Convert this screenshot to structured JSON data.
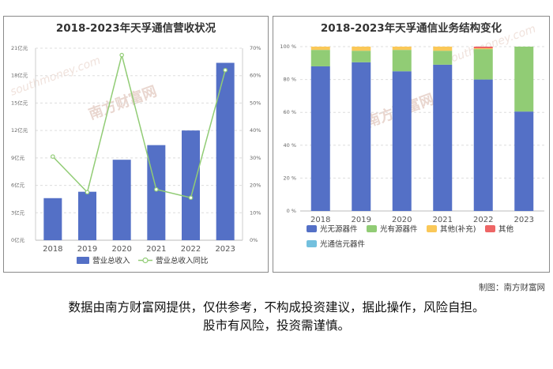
{
  "credit": "制图：南方财富网",
  "disclaimer": {
    "line1": "数据由南方财富网提供，仅供参考，不构成投资建议，据此操作，风险自担。",
    "line2": "股市有风险，投资需谨慎。"
  },
  "watermark": {
    "brand": "南方财富网",
    "site": "southmoney.com"
  },
  "colors": {
    "bar_revenue": "#5470c6",
    "line_yoy": "#91cc75",
    "seg_light_passive": "#5470c6",
    "seg_light_active": "#91cc75",
    "seg_other_supp": "#fac858",
    "seg_other": "#ee6666",
    "seg_optical_comm": "#73c0de"
  },
  "chart_data": [
    {
      "type": "bar",
      "title": "2018-2023年天孚通信营收状况",
      "categories": [
        "2018",
        "2019",
        "2020",
        "2021",
        "2022",
        "2023"
      ],
      "series": [
        {
          "name": "营业总收入",
          "type": "bar",
          "axis": "left",
          "values": [
            4.6,
            5.3,
            8.8,
            10.4,
            12.0,
            19.4
          ]
        },
        {
          "name": "营业总收入同比",
          "type": "line",
          "axis": "right",
          "values": [
            30.5,
            17.5,
            67.5,
            18.5,
            15.5,
            62.0
          ]
        }
      ],
      "y_left": {
        "ticks": [
          "0亿元",
          "3亿元",
          "6亿元",
          "9亿元",
          "12亿元",
          "15亿元",
          "18亿元",
          "21亿元"
        ],
        "ylim": [
          0,
          21
        ]
      },
      "y_right": {
        "ticks": [
          "0%",
          "10%",
          "20%",
          "30%",
          "40%",
          "50%",
          "60%",
          "70%"
        ],
        "ylim": [
          0,
          70
        ]
      },
      "grid": "horizontal-dashed",
      "legend_position": "bottom"
    },
    {
      "type": "bar",
      "stacked": true,
      "title": "2018-2023年天孚通信业务结构变化",
      "categories": [
        "2018",
        "2019",
        "2020",
        "2021",
        "2022",
        "2023"
      ],
      "series": [
        {
          "name": "光无源器件",
          "values": [
            88,
            90.5,
            85,
            89,
            80,
            60.5
          ]
        },
        {
          "name": "光有源器件",
          "values": [
            10,
            7,
            13,
            8.5,
            18.5,
            39.5
          ]
        },
        {
          "name": "其他(补充)",
          "values": [
            2,
            2.5,
            2,
            2.5,
            0.5,
            0
          ]
        },
        {
          "name": "其他",
          "values": [
            0,
            0,
            0,
            0,
            1,
            0
          ]
        },
        {
          "name": "光通信元器件",
          "values": [
            0,
            0,
            0,
            0,
            0,
            0
          ]
        }
      ],
      "y": {
        "ticks": [
          "0 %",
          "20 %",
          "40 %",
          "60 %",
          "80 %",
          "100 %"
        ],
        "ylim": [
          0,
          100
        ]
      },
      "grid": "horizontal-dashed",
      "legend_position": "bottom"
    }
  ]
}
